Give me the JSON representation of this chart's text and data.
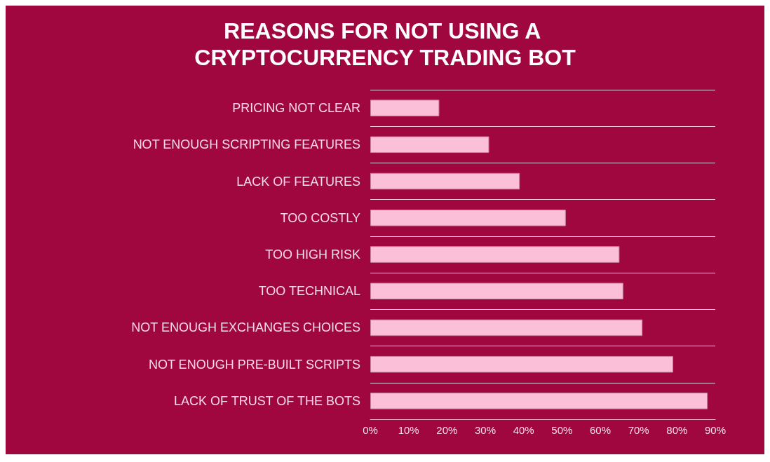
{
  "chart_data": {
    "type": "bar",
    "orientation": "horizontal",
    "title": "REASONS FOR NOT USING A CRYPTOCURRENCY TRADING BOT",
    "categories": [
      "PRICING NOT CLEAR",
      "NOT ENOUGH SCRIPTING FEATURES",
      "LACK OF FEATURES",
      "TOO COSTLY",
      "TOO HIGH RISK",
      "TOO TECHNICAL",
      "NOT ENOUGH EXCHANGES CHOICES",
      "NOT ENOUGH PRE-BUILT SCRIPTS",
      "LACK OF TRUST OF THE BOTS"
    ],
    "values": [
      18,
      31,
      39,
      51,
      65,
      66,
      71,
      79,
      88
    ],
    "color": "#fbbfd8",
    "xlim": [
      0,
      90
    ],
    "xticks": [
      {
        "value": 0,
        "label": "0%"
      },
      {
        "value": 10,
        "label": "10%"
      },
      {
        "value": 20,
        "label": "20%"
      },
      {
        "value": 30,
        "label": "30%"
      },
      {
        "value": 40,
        "label": "40%"
      },
      {
        "value": 50,
        "label": "50%"
      },
      {
        "value": 60,
        "label": "60%"
      },
      {
        "value": 70,
        "label": "70%"
      },
      {
        "value": 80,
        "label": "80%"
      },
      {
        "value": 90,
        "label": "90%"
      }
    ],
    "grid": "y"
  }
}
